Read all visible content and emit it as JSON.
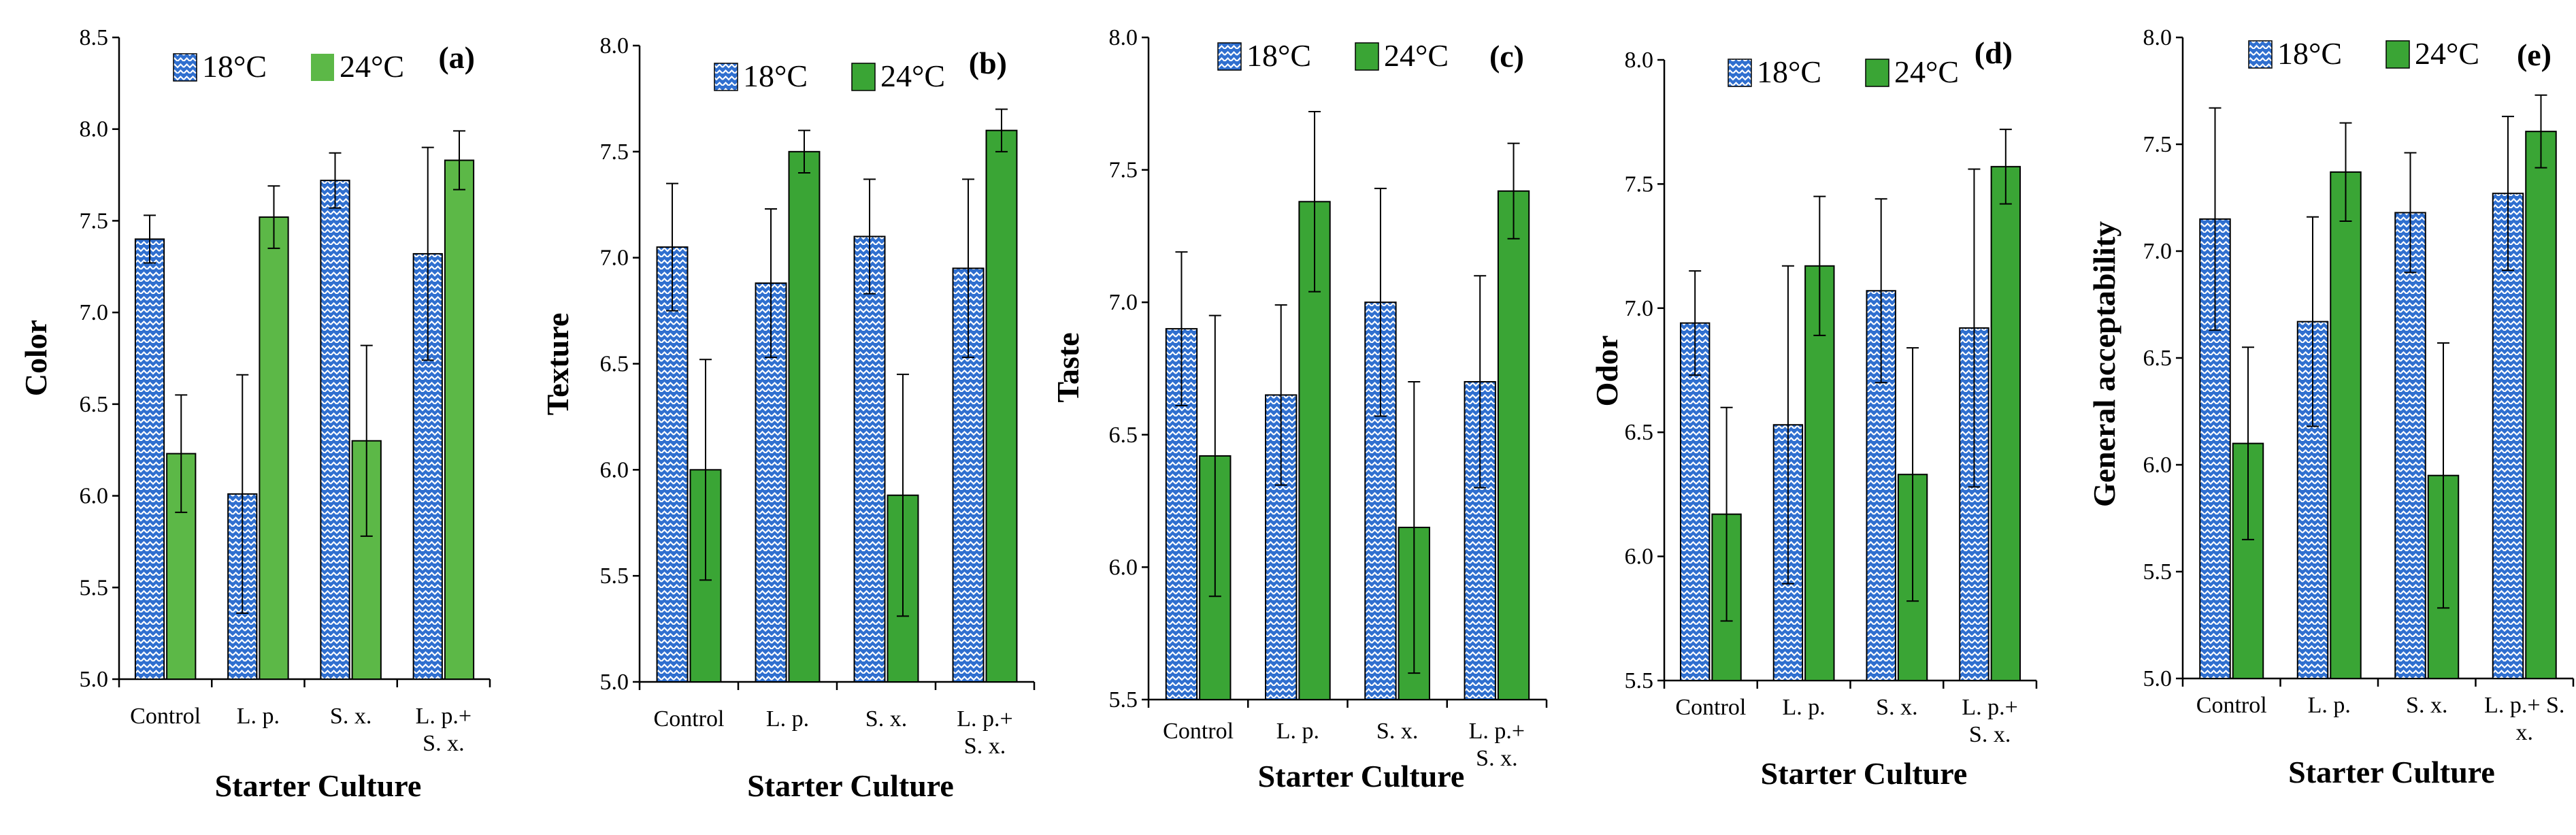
{
  "colors": {
    "s18_fill": "#2f6fcf",
    "s18_pattern": "#ffffff",
    "s24_fill_a": "#5cb847",
    "s24_fill": "#3aa535",
    "bar_stroke": "#000000",
    "axis": "#000000"
  },
  "legend_pattern_icon": "blue-checkered-swatch",
  "chart_data": [
    {
      "type": "bar",
      "panel": "(a)",
      "title": "",
      "xlabel": "Starter Culture",
      "ylabel": "Color",
      "ylim": [
        5.0,
        8.5
      ],
      "yticks": [
        "5.0",
        "5.5",
        "6.0",
        "6.5",
        "7.0",
        "7.5",
        "8.0",
        "8.5"
      ],
      "categories": [
        [
          "Control"
        ],
        [
          "L. p."
        ],
        [
          "S. x."
        ],
        [
          "L. p.+",
          "S. x."
        ]
      ],
      "series": [
        {
          "name": "18°C",
          "values": [
            7.4,
            6.01,
            7.72,
            7.32
          ],
          "errors": [
            0.13,
            0.65,
            0.15,
            0.58
          ]
        },
        {
          "name": "24°C",
          "values": [
            6.23,
            7.52,
            6.3,
            7.83
          ],
          "errors": [
            0.32,
            0.17,
            0.52,
            0.16
          ]
        }
      ],
      "legend": "top"
    },
    {
      "type": "bar",
      "panel": "(b)",
      "title": "",
      "xlabel": "Starter Culture",
      "ylabel": "Texture",
      "ylim": [
        5.0,
        8.0
      ],
      "yticks": [
        "5.0",
        "5.5",
        "6.0",
        "6.5",
        "7.0",
        "7.5",
        "8.0"
      ],
      "categories": [
        [
          "Control"
        ],
        [
          "L. p."
        ],
        [
          "S. x."
        ],
        [
          "L. p.+",
          "S. x."
        ]
      ],
      "series": [
        {
          "name": "18°C",
          "values": [
            7.05,
            6.88,
            7.1,
            6.95
          ],
          "errors": [
            0.3,
            0.35,
            0.27,
            0.42
          ]
        },
        {
          "name": "24°C",
          "values": [
            6.0,
            7.5,
            5.88,
            7.6
          ],
          "errors": [
            0.52,
            0.1,
            0.57,
            0.1
          ]
        }
      ],
      "legend": "top"
    },
    {
      "type": "bar",
      "panel": "(c)",
      "title": "",
      "xlabel": "Starter Culture",
      "ylabel": "Taste",
      "ylim": [
        5.5,
        8.0
      ],
      "yticks": [
        "5.5",
        "6.0",
        "6.5",
        "7.0",
        "7.5",
        "8.0"
      ],
      "categories": [
        [
          "Control"
        ],
        [
          "L. p."
        ],
        [
          "S. x."
        ],
        [
          "L. p.+",
          "S. x."
        ]
      ],
      "series": [
        {
          "name": "18°C",
          "values": [
            6.9,
            6.65,
            7.0,
            6.7
          ],
          "errors": [
            0.29,
            0.34,
            0.43,
            0.4
          ]
        },
        {
          "name": "24°C",
          "values": [
            6.42,
            7.38,
            6.15,
            7.42
          ],
          "errors": [
            0.53,
            0.34,
            0.55,
            0.18
          ]
        }
      ],
      "legend": "top"
    },
    {
      "type": "bar",
      "panel": "(d)",
      "title": "",
      "xlabel": "Starter Culture",
      "ylabel": "Odor",
      "ylim": [
        5.5,
        8.0
      ],
      "yticks": [
        "5.5",
        "6.0",
        "6.5",
        "7.0",
        "7.5",
        "8.0"
      ],
      "categories": [
        [
          "Control"
        ],
        [
          "L. p."
        ],
        [
          "S. x."
        ],
        [
          "L. p.+",
          "S. x."
        ]
      ],
      "series": [
        {
          "name": "18°C",
          "values": [
            6.94,
            6.53,
            7.07,
            6.92
          ],
          "errors": [
            0.21,
            0.64,
            0.37,
            0.64
          ]
        },
        {
          "name": "24°C",
          "values": [
            6.17,
            7.17,
            6.33,
            7.57
          ],
          "errors": [
            0.43,
            0.28,
            0.51,
            0.15
          ]
        }
      ],
      "legend": "top"
    },
    {
      "type": "bar",
      "panel": "(e)",
      "title": "",
      "xlabel": "Starter Culture",
      "ylabel": "General acceptability",
      "ylim": [
        5.0,
        8.0
      ],
      "yticks": [
        "5.0",
        "5.5",
        "6.0",
        "6.5",
        "7.0",
        "7.5",
        "8.0"
      ],
      "categories": [
        [
          "Control"
        ],
        [
          "L. p."
        ],
        [
          "S. x."
        ],
        [
          "L. p.+ S.",
          "x."
        ]
      ],
      "series": [
        {
          "name": "18°C",
          "values": [
            7.15,
            6.67,
            7.18,
            7.27
          ],
          "errors": [
            0.52,
            0.49,
            0.28,
            0.36
          ]
        },
        {
          "name": "24°C",
          "values": [
            6.1,
            7.37,
            5.95,
            7.56
          ],
          "errors": [
            0.45,
            0.23,
            0.62,
            0.17
          ]
        }
      ],
      "legend": "top"
    }
  ]
}
